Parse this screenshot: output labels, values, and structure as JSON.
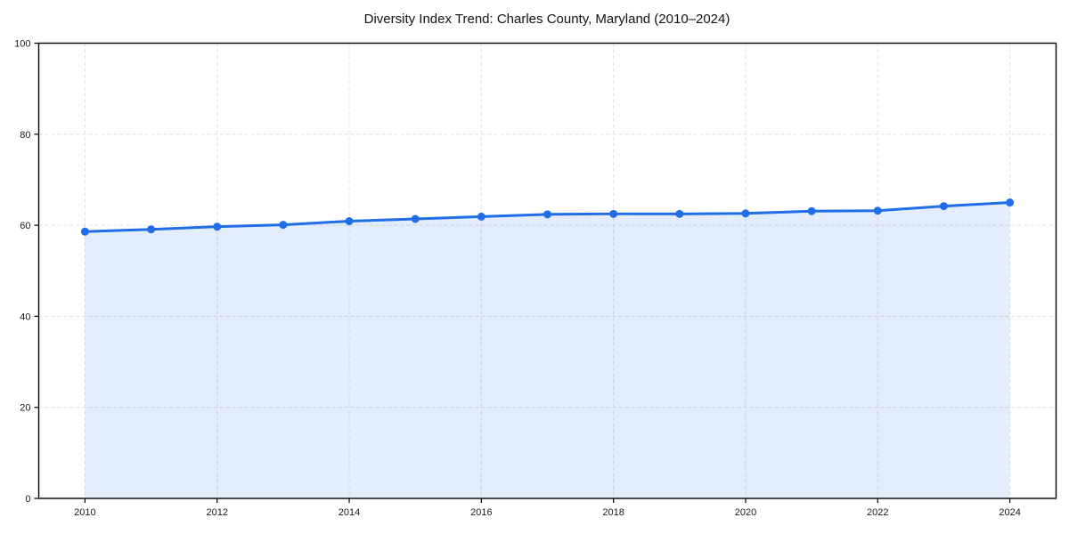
{
  "chart_data": {
    "type": "line",
    "title": "Diversity Index Trend: Charles County, Maryland (2010–2024)",
    "x": [
      2010,
      2011,
      2012,
      2013,
      2014,
      2015,
      2016,
      2017,
      2018,
      2019,
      2020,
      2021,
      2022,
      2023,
      2024
    ],
    "values": [
      58.6,
      59.1,
      59.7,
      60.1,
      60.9,
      61.4,
      61.9,
      62.4,
      62.5,
      62.5,
      62.6,
      63.1,
      63.2,
      64.2,
      65.0
    ],
    "xlabel": "",
    "ylabel": "",
    "xlim": [
      2009.3,
      2024.7
    ],
    "ylim": [
      0,
      100
    ],
    "xtick_values": [
      2010,
      2012,
      2014,
      2016,
      2018,
      2020,
      2022,
      2024
    ],
    "xtick_labels": [
      "2010",
      "2012",
      "2014",
      "2016",
      "2018",
      "2020",
      "2022",
      "2024"
    ],
    "ytick_values": [
      0,
      20,
      40,
      60,
      80,
      100
    ],
    "ytick_labels": [
      "0",
      "20",
      "40",
      "60",
      "80",
      "100"
    ],
    "grid": "dashed",
    "legend_position": "none",
    "marker": "circle",
    "area_fill": true
  },
  "colors": {
    "line": "#1f6ee6",
    "marker": "#1f6ee6",
    "area_fill": "rgba(31,110,230,0.12)",
    "grid": "#e0e0e0",
    "axis": "#000000",
    "title_text": "#111111",
    "tick_text": "#1a1a1a",
    "background": "#ffffff"
  }
}
